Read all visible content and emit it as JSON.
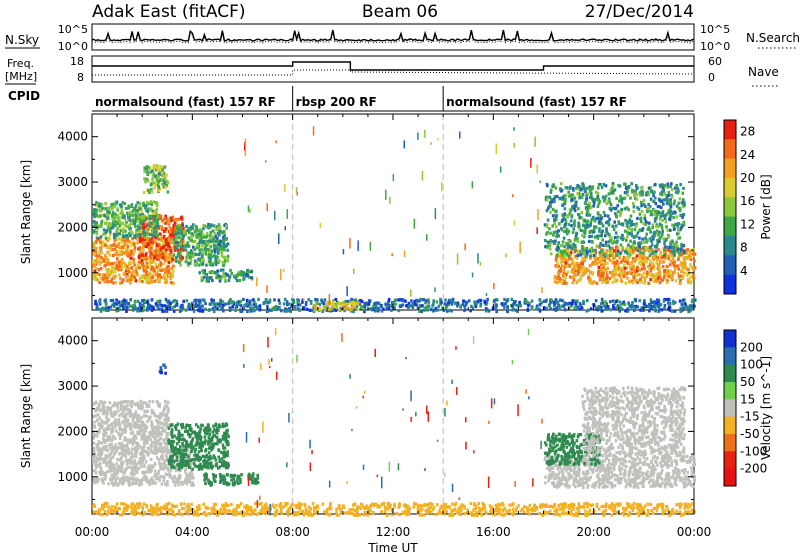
{
  "header": {
    "radar": "Adak East (fitACF)",
    "beam": "Beam 06",
    "date": "27/Dec/2014"
  },
  "strips": {
    "noise": {
      "left_label": "N.Sky",
      "right_label": "N.Search",
      "left_ticks": [
        "10^5",
        "10^0"
      ],
      "right_ticks": [
        "10^5",
        "10^0"
      ]
    },
    "freq": {
      "left_label_1": "Freq.",
      "left_label_2": "[MHz]",
      "right_label": "Nave",
      "left_ticks": [
        "18",
        "8"
      ],
      "right_ticks": [
        "60",
        "0"
      ]
    },
    "cpid": {
      "label": "CPID",
      "segments": [
        {
          "name": "normalsound (fast) 157 RF",
          "start_h": 0,
          "end_h": 8
        },
        {
          "name": "rbsp 200 RF",
          "start_h": 8,
          "end_h": 14
        },
        {
          "name": "normalsound (fast) 157 RF",
          "start_h": 14,
          "end_h": 24
        }
      ]
    }
  },
  "chart_data": [
    {
      "type": "heatmap",
      "title": "",
      "xlabel": "",
      "ylabel": "Slant Range [km]",
      "xlim": [
        0,
        24
      ],
      "ylim": [
        180,
        4500
      ],
      "yticks": [
        1000,
        2000,
        3000,
        4000
      ],
      "colorbar": {
        "label": "Power [dB]",
        "ticks": [
          4,
          8,
          12,
          16,
          20,
          24,
          28
        ],
        "range": [
          0,
          30
        ],
        "colors": [
          "#1030e0",
          "#1f5fb8",
          "#2a8a8a",
          "#3da844",
          "#8ac83a",
          "#d8cc2e",
          "#f5a020",
          "#f56a18",
          "#e82010"
        ]
      },
      "clusters": [
        {
          "h": [
            0.0,
            3.2
          ],
          "r": [
            800,
            1800
          ],
          "value": 22
        },
        {
          "h": [
            1.8,
            3.6
          ],
          "r": [
            1300,
            2300
          ],
          "value": 26
        },
        {
          "h": [
            0.0,
            2.6
          ],
          "r": [
            1800,
            2600
          ],
          "value": 12
        },
        {
          "h": [
            2.0,
            3.0
          ],
          "r": [
            2800,
            3400
          ],
          "value": 14
        },
        {
          "h": [
            3.2,
            5.4
          ],
          "r": [
            1200,
            2100
          ],
          "value": 11
        },
        {
          "h": [
            4.2,
            6.4
          ],
          "r": [
            850,
            1100
          ],
          "value": 10
        },
        {
          "h": [
            18.4,
            24.0
          ],
          "r": [
            800,
            1600
          ],
          "value": 22
        },
        {
          "h": [
            18.0,
            23.6
          ],
          "r": [
            1400,
            3000
          ],
          "value": 10
        },
        {
          "h": [
            0.0,
            24.0
          ],
          "r": [
            180,
            450
          ],
          "value": 6
        },
        {
          "h": [
            8.8,
            10.6
          ],
          "r": [
            200,
            400
          ],
          "value": 18
        }
      ]
    },
    {
      "type": "heatmap",
      "title": "",
      "xlabel": "Time UT",
      "ylabel": "Slant Range [km]",
      "xlim": [
        0,
        24
      ],
      "ylim": [
        180,
        4500
      ],
      "xticks": [
        "00:00",
        "04:00",
        "08:00",
        "12:00",
        "16:00",
        "20:00",
        "00:00"
      ],
      "yticks": [
        1000,
        2000,
        3000,
        4000
      ],
      "colorbar": {
        "label": "Velocity [m s^-1]",
        "ticks": [
          200,
          100,
          50,
          15,
          -15,
          -50,
          -100,
          -200
        ],
        "colors": [
          "#1030d0",
          "#2a6fb0",
          "#2e8a4e",
          "#6fd04a",
          "#c0c0bc",
          "#f5b020",
          "#f07018",
          "#e82010",
          "#e81010"
        ]
      },
      "clusters": [
        {
          "h": [
            0.0,
            4.0
          ],
          "r": [
            850,
            1700
          ],
          "value": 0
        },
        {
          "h": [
            0.0,
            3.0
          ],
          "r": [
            1600,
            2700
          ],
          "value": 0
        },
        {
          "h": [
            3.0,
            5.4
          ],
          "r": [
            1200,
            2200
          ],
          "value": 60
        },
        {
          "h": [
            4.4,
            6.6
          ],
          "r": [
            850,
            1100
          ],
          "value": 60
        },
        {
          "h": [
            18.0,
            24.0
          ],
          "r": [
            800,
            1500
          ],
          "value": 0
        },
        {
          "h": [
            18.0,
            20.2
          ],
          "r": [
            1300,
            2000
          ],
          "value": 60
        },
        {
          "h": [
            19.5,
            23.6
          ],
          "r": [
            1500,
            3000
          ],
          "value": 0
        },
        {
          "h": [
            0.0,
            24.0
          ],
          "r": [
            180,
            450
          ],
          "value": -40
        },
        {
          "h": [
            2.6,
            2.9
          ],
          "r": [
            3300,
            3500
          ],
          "value": 200
        }
      ]
    }
  ]
}
